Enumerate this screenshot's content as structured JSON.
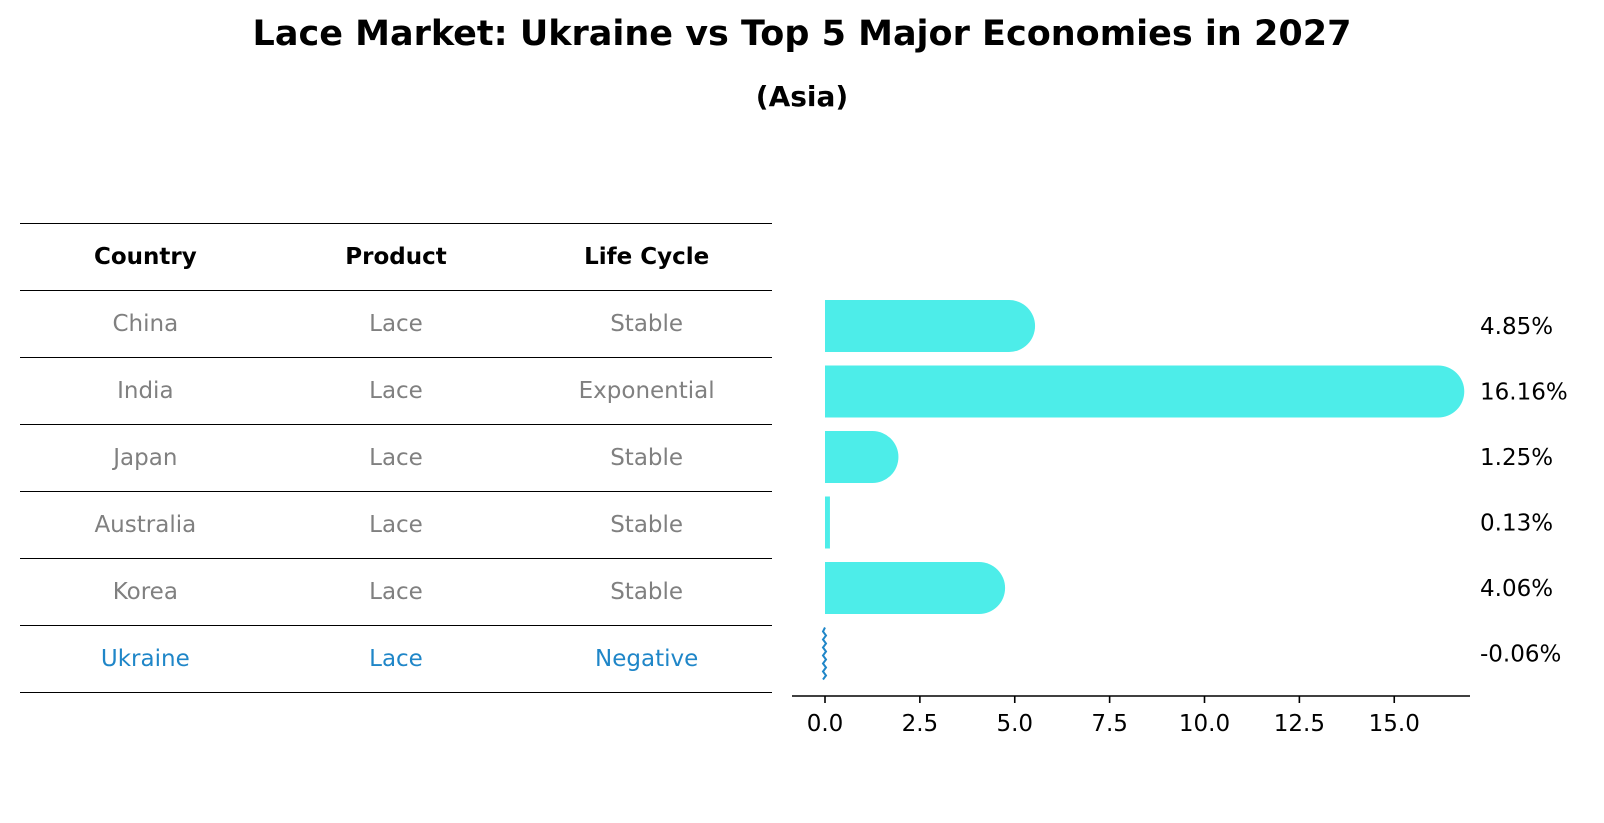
{
  "header": {
    "title": "Lace Market: Ukraine vs Top 5 Major Economies in 2027",
    "subtitle": "(Asia)"
  },
  "table": {
    "columns": [
      "Country",
      "Product",
      "Life Cycle"
    ],
    "rows": [
      {
        "country": "China",
        "product": "Lace",
        "life_cycle": "Stable"
      },
      {
        "country": "India",
        "product": "Lace",
        "life_cycle": "Exponential"
      },
      {
        "country": "Japan",
        "product": "Lace",
        "life_cycle": "Stable"
      },
      {
        "country": "Australia",
        "product": "Lace",
        "life_cycle": "Stable"
      },
      {
        "country": "Korea",
        "product": "Lace",
        "life_cycle": "Stable"
      },
      {
        "country": "Ukraine",
        "product": "Lace",
        "life_cycle": "Negative"
      }
    ]
  },
  "colors": {
    "bar": "#4dede9",
    "highlight": "#1f86c8",
    "muted_text": "#808080"
  },
  "chart_data": {
    "type": "bar",
    "orientation": "horizontal",
    "categories": [
      "China",
      "India",
      "Japan",
      "Australia",
      "Korea",
      "Ukraine"
    ],
    "values": [
      4.85,
      16.16,
      1.25,
      0.13,
      4.06,
      -0.06
    ],
    "value_labels": [
      "4.85%",
      "16.16%",
      "1.25%",
      "0.13%",
      "4.06%",
      "-0.06%"
    ],
    "xlim": [
      -0.9,
      17
    ],
    "xticks": [
      0.0,
      2.5,
      5.0,
      7.5,
      10.0,
      12.5,
      15.0
    ],
    "xtick_labels": [
      "0.0",
      "2.5",
      "5.0",
      "7.5",
      "10.0",
      "12.5",
      "15.0"
    ],
    "xlabel": "",
    "ylabel": "",
    "grid": false
  }
}
